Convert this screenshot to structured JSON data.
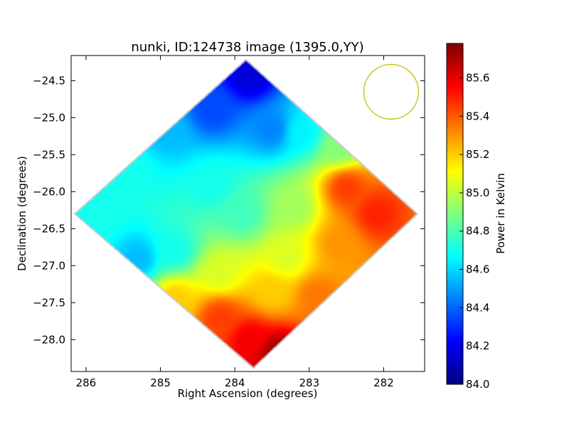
{
  "chart_data": {
    "type": "heatmap",
    "title": "nunki, ID:124738 image (1395.0,YY)",
    "xlabel": "Right Ascension (degrees)",
    "ylabel": "Declination (degrees)",
    "colorbar_label": "Power in Kelvin",
    "colormap": "jet",
    "xlim": [
      286.2,
      281.45
    ],
    "ylim": [
      -28.43,
      -24.16
    ],
    "x_ticks": [
      {
        "value": 286,
        "label": "286"
      },
      {
        "value": 285,
        "label": "285"
      },
      {
        "value": 284,
        "label": "284"
      },
      {
        "value": 283,
        "label": "283"
      },
      {
        "value": 282,
        "label": "282"
      }
    ],
    "y_ticks": [
      {
        "value": -24.5,
        "label": "−24.5"
      },
      {
        "value": -25.0,
        "label": "−25.0"
      },
      {
        "value": -25.5,
        "label": "−25.5"
      },
      {
        "value": -26.0,
        "label": "−26.0"
      },
      {
        "value": -26.5,
        "label": "−26.5"
      },
      {
        "value": -27.0,
        "label": "−27.0"
      },
      {
        "value": -27.5,
        "label": "−27.5"
      },
      {
        "value": -28.0,
        "label": "−28.0"
      }
    ],
    "colorbar_range": [
      84.0,
      85.78
    ],
    "colorbar_ticks": [
      {
        "value": 84.0,
        "label": "84.0"
      },
      {
        "value": 84.2,
        "label": "84.2"
      },
      {
        "value": 84.4,
        "label": "84.4"
      },
      {
        "value": 84.6,
        "label": "84.6"
      },
      {
        "value": 84.8,
        "label": "84.8"
      },
      {
        "value": 85.0,
        "label": "85.0"
      },
      {
        "value": 85.2,
        "label": "85.2"
      },
      {
        "value": 85.4,
        "label": "85.4"
      },
      {
        "value": 85.6,
        "label": "85.6"
      }
    ],
    "field_outline_degrees": [
      [
        283.85,
        -24.22
      ],
      [
        281.55,
        -26.3
      ],
      [
        283.75,
        -28.38
      ],
      [
        286.15,
        -26.3
      ]
    ],
    "beam_circle": {
      "center": [
        281.9,
        -24.65
      ],
      "radius_deg": 0.37,
      "color": "#bfbf00"
    },
    "temperature_anchors_kelvin": [
      {
        "ra": 283.8,
        "dec": -24.45,
        "value": 84.15
      },
      {
        "ra": 284.3,
        "dec": -24.9,
        "value": 84.35
      },
      {
        "ra": 283.5,
        "dec": -25.15,
        "value": 84.45
      },
      {
        "ra": 284.9,
        "dec": -25.2,
        "value": 84.55
      },
      {
        "ra": 283.1,
        "dec": -25.2,
        "value": 84.65
      },
      {
        "ra": 285.4,
        "dec": -25.7,
        "value": 84.7
      },
      {
        "ra": 284.3,
        "dec": -25.9,
        "value": 84.7
      },
      {
        "ra": 282.6,
        "dec": -25.4,
        "value": 84.9
      },
      {
        "ra": 285.8,
        "dec": -26.3,
        "value": 84.7
      },
      {
        "ra": 285.3,
        "dec": -26.9,
        "value": 84.55
      },
      {
        "ra": 284.8,
        "dec": -26.8,
        "value": 84.7
      },
      {
        "ra": 283.9,
        "dec": -26.3,
        "value": 84.78
      },
      {
        "ra": 283.2,
        "dec": -26.2,
        "value": 84.95
      },
      {
        "ra": 282.5,
        "dec": -25.95,
        "value": 85.45
      },
      {
        "ra": 282.1,
        "dec": -26.3,
        "value": 85.5
      },
      {
        "ra": 282.6,
        "dec": -26.7,
        "value": 85.3
      },
      {
        "ra": 283.3,
        "dec": -26.9,
        "value": 85.05
      },
      {
        "ra": 284.2,
        "dec": -27.1,
        "value": 85.05
      },
      {
        "ra": 284.8,
        "dec": -27.45,
        "value": 85.2
      },
      {
        "ra": 283.5,
        "dec": -27.35,
        "value": 85.2
      },
      {
        "ra": 282.9,
        "dec": -27.4,
        "value": 85.35
      },
      {
        "ra": 284.2,
        "dec": -27.7,
        "value": 85.45
      },
      {
        "ra": 283.8,
        "dec": -28.0,
        "value": 85.58
      },
      {
        "ra": 283.4,
        "dec": -28.2,
        "value": 85.75
      }
    ]
  }
}
